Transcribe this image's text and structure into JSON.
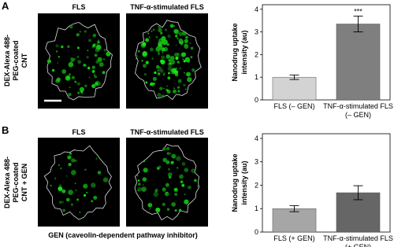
{
  "panels": [
    {
      "label": "A",
      "row_label": [
        "DEX-Alexa 488-",
        "PEG-coated",
        "CNT"
      ],
      "image_labels": [
        "FLS",
        "TNF-α-stimulated FLS"
      ]
    },
    {
      "label": "B",
      "row_label": [
        "DEX-Alexa 488-",
        "PEG-coated",
        "CNT + GEN"
      ],
      "image_labels": [
        "FLS",
        "TNF-α-stimulated FLS"
      ],
      "caption": "GEN (caveolin-dependent pathway inhibitor)"
    }
  ],
  "chart_data": [
    {
      "type": "bar",
      "ylabel": [
        "Nanodrug uptake",
        "intensity (au)"
      ],
      "categories": [
        "FLS (– GEN)",
        "TNF-α-stimulated FLS (– GEN)"
      ],
      "values": [
        1.0,
        3.35
      ],
      "errors": [
        0.1,
        0.35
      ],
      "value_annotations": [
        null,
        "***"
      ],
      "colors": [
        "#d3d3d3",
        "#7f7f7f"
      ],
      "ylim": [
        0,
        4.2
      ],
      "yticks": [
        0,
        1,
        2,
        3,
        4
      ]
    },
    {
      "type": "bar",
      "ylabel": [
        "Nanodrug uptake",
        "intensity (au)"
      ],
      "categories": [
        "FLS (+ GEN)",
        "TNF-α-stimulated FLS (+ GEN)"
      ],
      "values": [
        1.0,
        1.68
      ],
      "errors": [
        0.13,
        0.3
      ],
      "colors": [
        "#a6a6a6",
        "#666666"
      ],
      "ylim": [
        0,
        4.2
      ],
      "yticks": [
        0,
        1,
        2,
        3,
        4
      ]
    }
  ]
}
